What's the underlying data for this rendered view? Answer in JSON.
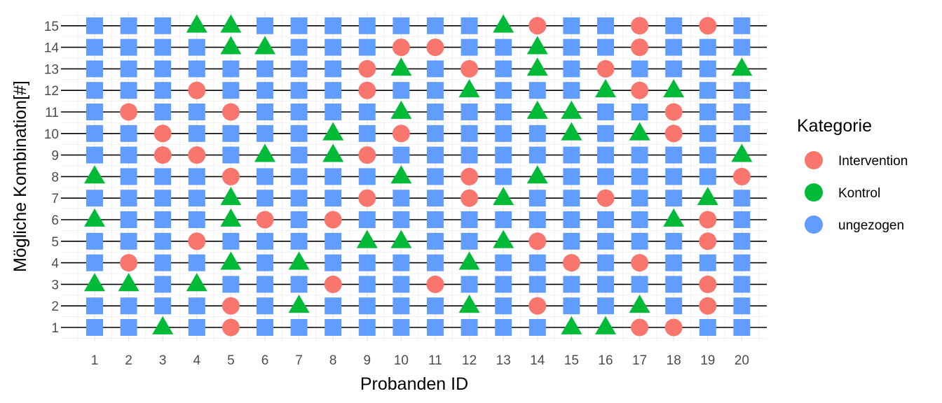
{
  "chart_data": {
    "type": "scatter",
    "title": "",
    "xlabel": "Probanden ID",
    "ylabel": "Mögliche Kombination[#]",
    "x_ticks": [
      "1",
      "2",
      "3",
      "4",
      "5",
      "6",
      "7",
      "8",
      "9",
      "10",
      "11",
      "12",
      "13",
      "14",
      "15",
      "16",
      "17",
      "18",
      "19",
      "20"
    ],
    "y_ticks": [
      "1",
      "2",
      "3",
      "4",
      "5",
      "6",
      "7",
      "8",
      "9",
      "10",
      "11",
      "12",
      "13",
      "14",
      "15"
    ],
    "xlim": [
      1,
      20
    ],
    "ylim": [
      1,
      15
    ],
    "grid": true,
    "horizontal_lines": "black line at every integer y",
    "legend": {
      "title": "Kategorie",
      "placement": "right",
      "entries": [
        {
          "name": "Intervention",
          "shape": "circle",
          "color": "#F8766D"
        },
        {
          "name": "Kontrol",
          "shape": "triangle",
          "color": "#00BA38"
        },
        {
          "name": "ungezogen",
          "shape": "square",
          "color": "#619CFF"
        }
      ]
    },
    "default_category": "ungezogen",
    "series": [
      {
        "name": "Intervention",
        "points": [
          [
            2,
            4
          ],
          [
            2,
            11
          ],
          [
            3,
            9
          ],
          [
            3,
            10
          ],
          [
            4,
            5
          ],
          [
            4,
            9
          ],
          [
            4,
            12
          ],
          [
            5,
            1
          ],
          [
            5,
            2
          ],
          [
            5,
            8
          ],
          [
            5,
            11
          ],
          [
            6,
            6
          ],
          [
            8,
            3
          ],
          [
            8,
            6
          ],
          [
            9,
            7
          ],
          [
            9,
            9
          ],
          [
            9,
            12
          ],
          [
            9,
            13
          ],
          [
            10,
            10
          ],
          [
            10,
            14
          ],
          [
            11,
            3
          ],
          [
            11,
            14
          ],
          [
            12,
            7
          ],
          [
            12,
            8
          ],
          [
            12,
            13
          ],
          [
            14,
            2
          ],
          [
            14,
            5
          ],
          [
            14,
            15
          ],
          [
            15,
            4
          ],
          [
            16,
            7
          ],
          [
            16,
            13
          ],
          [
            17,
            1
          ],
          [
            17,
            4
          ],
          [
            17,
            12
          ],
          [
            17,
            14
          ],
          [
            17,
            15
          ],
          [
            18,
            1
          ],
          [
            18,
            10
          ],
          [
            18,
            11
          ],
          [
            19,
            2
          ],
          [
            19,
            3
          ],
          [
            19,
            5
          ],
          [
            19,
            6
          ],
          [
            19,
            15
          ],
          [
            20,
            8
          ]
        ]
      },
      {
        "name": "Kontrol",
        "points": [
          [
            1,
            3
          ],
          [
            1,
            6
          ],
          [
            1,
            8
          ],
          [
            2,
            3
          ],
          [
            3,
            1
          ],
          [
            4,
            3
          ],
          [
            4,
            15
          ],
          [
            5,
            4
          ],
          [
            5,
            6
          ],
          [
            5,
            7
          ],
          [
            5,
            14
          ],
          [
            5,
            15
          ],
          [
            6,
            9
          ],
          [
            6,
            14
          ],
          [
            7,
            2
          ],
          [
            7,
            4
          ],
          [
            8,
            9
          ],
          [
            8,
            10
          ],
          [
            9,
            5
          ],
          [
            10,
            5
          ],
          [
            10,
            8
          ],
          [
            10,
            11
          ],
          [
            10,
            13
          ],
          [
            12,
            2
          ],
          [
            12,
            4
          ],
          [
            12,
            12
          ],
          [
            13,
            5
          ],
          [
            13,
            7
          ],
          [
            13,
            15
          ],
          [
            14,
            8
          ],
          [
            14,
            11
          ],
          [
            14,
            13
          ],
          [
            14,
            14
          ],
          [
            15,
            1
          ],
          [
            15,
            10
          ],
          [
            15,
            11
          ],
          [
            16,
            1
          ],
          [
            16,
            12
          ],
          [
            17,
            2
          ],
          [
            17,
            10
          ],
          [
            18,
            6
          ],
          [
            18,
            12
          ],
          [
            19,
            7
          ],
          [
            20,
            9
          ],
          [
            20,
            13
          ]
        ]
      }
    ]
  }
}
